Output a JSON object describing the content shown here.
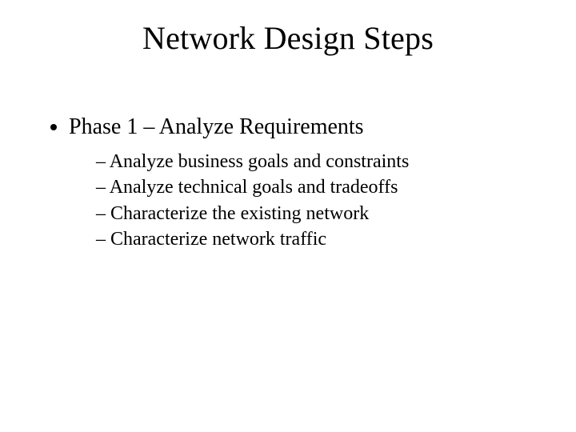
{
  "slide": {
    "title": "Network Design Steps",
    "phase": {
      "heading": "Phase 1 – Analyze Requirements",
      "items": [
        "Analyze business goals and constraints",
        "Analyze technical goals and tradeoffs",
        "Characterize the existing network",
        "Characterize network traffic"
      ]
    },
    "style": {
      "background_color": "#ffffff",
      "text_color": "#000000",
      "font_family": "Times New Roman",
      "title_fontsize": 40,
      "l1_fontsize": 28,
      "l2_fontsize": 24
    }
  }
}
